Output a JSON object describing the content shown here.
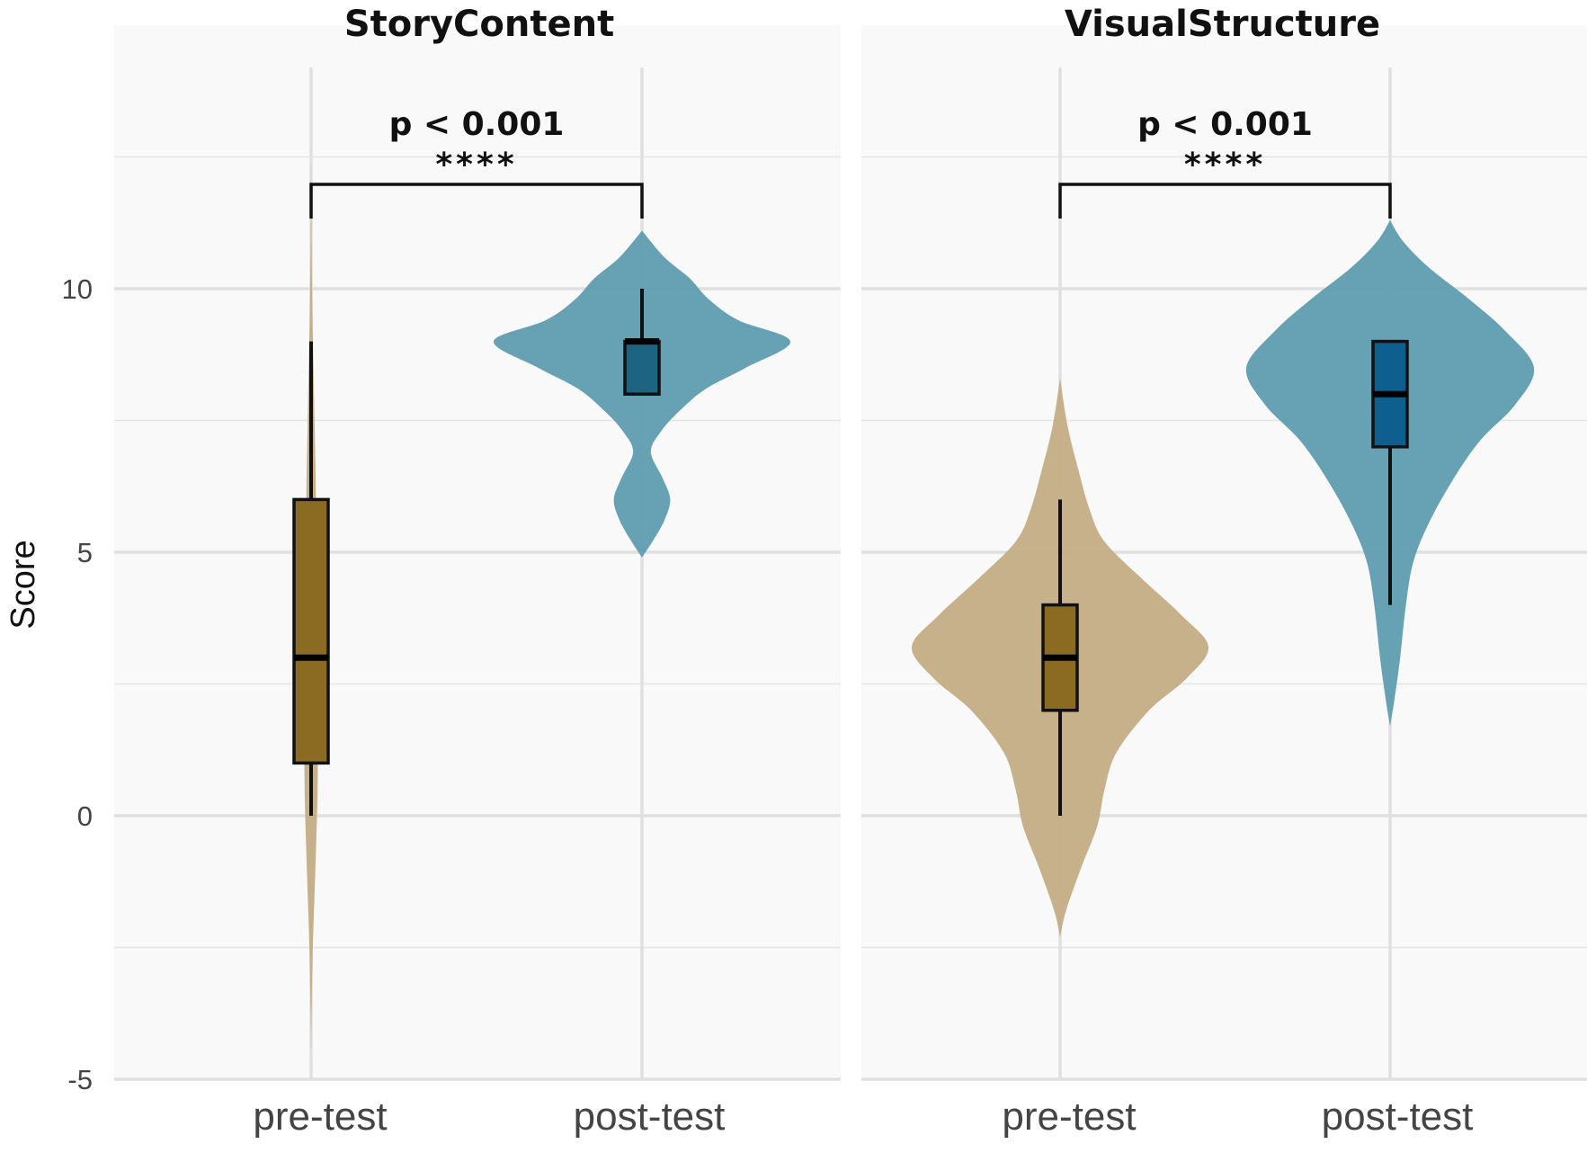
{
  "chart_data": {
    "type": "violin",
    "ylabel": "Score",
    "ylim": [
      -5,
      15
    ],
    "y_ticks": [
      -5,
      0,
      5,
      10
    ],
    "grid": true,
    "groups": [
      "pre-test",
      "post-test"
    ],
    "colors": {
      "pre-test": {
        "violin": "#c4ad84",
        "box": "#8b6a22"
      },
      "post-test": {
        "violin": "#5f9cb0",
        "box": "#1d6382",
        "box_alt": "#0d5f90"
      }
    },
    "panels": [
      {
        "title": "StoryContent",
        "significance": {
          "p_label": "p < 0.001",
          "stars": "****"
        },
        "violins": [
          {
            "group": "pre-test",
            "box": {
              "min": 0,
              "q1": 1,
              "median": 3,
              "q3": 6,
              "max": 9
            },
            "density": [
              [
                -4.5,
                0.0
              ],
              [
                -3.5,
                0.02
              ],
              [
                -2.5,
                0.05
              ],
              [
                -1.5,
                0.1
              ],
              [
                -0.5,
                0.15
              ],
              [
                0.5,
                0.19
              ],
              [
                1.5,
                0.2
              ],
              [
                2.5,
                0.2
              ],
              [
                3.5,
                0.19
              ],
              [
                4.5,
                0.17
              ],
              [
                5.5,
                0.15
              ],
              [
                6.5,
                0.13
              ],
              [
                7.5,
                0.1
              ],
              [
                8.5,
                0.07
              ],
              [
                9.5,
                0.04
              ],
              [
                10.5,
                0.02
              ],
              [
                11.5,
                0.01
              ],
              [
                12.5,
                0.0
              ]
            ]
          },
          {
            "group": "post-test",
            "box": {
              "min": 8,
              "q1": 8,
              "median": 9,
              "q3": 9,
              "max": 10
            },
            "density": [
              [
                4.9,
                0.0
              ],
              [
                5.2,
                0.07
              ],
              [
                5.6,
                0.15
              ],
              [
                6.0,
                0.19
              ],
              [
                6.4,
                0.14
              ],
              [
                6.9,
                0.06
              ],
              [
                7.3,
                0.13
              ],
              [
                7.7,
                0.26
              ],
              [
                8.1,
                0.43
              ],
              [
                8.5,
                0.7
              ],
              [
                9.0,
                1.0
              ],
              [
                9.4,
                0.65
              ],
              [
                9.8,
                0.45
              ],
              [
                10.2,
                0.32
              ],
              [
                10.6,
                0.15
              ],
              [
                11.1,
                0.0
              ]
            ]
          }
        ]
      },
      {
        "title": "VisualStructure",
        "significance": {
          "p_label": "p < 0.001",
          "stars": "****"
        },
        "violins": [
          {
            "group": "pre-test",
            "box": {
              "min": 0,
              "q1": 2,
              "median": 3,
              "q3": 4,
              "max": 6
            },
            "density": [
              [
                -2.3,
                0.0
              ],
              [
                -1.8,
                0.04
              ],
              [
                -1.0,
                0.14
              ],
              [
                -0.2,
                0.25
              ],
              [
                0.5,
                0.3
              ],
              [
                1.2,
                0.38
              ],
              [
                2.0,
                0.6
              ],
              [
                2.6,
                0.85
              ],
              [
                3.2,
                1.0
              ],
              [
                3.8,
                0.82
              ],
              [
                4.5,
                0.55
              ],
              [
                5.2,
                0.3
              ],
              [
                5.8,
                0.2
              ],
              [
                6.6,
                0.12
              ],
              [
                7.4,
                0.05
              ],
              [
                8.3,
                0.0
              ]
            ]
          },
          {
            "group": "post-test",
            "box": {
              "min": 4,
              "q1": 7,
              "median": 8,
              "q3": 9,
              "max": 9
            },
            "density": [
              [
                1.7,
                0.0
              ],
              [
                2.2,
                0.03
              ],
              [
                3.0,
                0.07
              ],
              [
                4.0,
                0.11
              ],
              [
                4.8,
                0.16
              ],
              [
                5.5,
                0.26
              ],
              [
                6.3,
                0.42
              ],
              [
                7.1,
                0.62
              ],
              [
                7.8,
                0.87
              ],
              [
                8.5,
                1.0
              ],
              [
                9.2,
                0.8
              ],
              [
                9.8,
                0.55
              ],
              [
                10.4,
                0.27
              ],
              [
                10.9,
                0.09
              ],
              [
                11.3,
                0.0
              ]
            ]
          }
        ]
      }
    ]
  }
}
